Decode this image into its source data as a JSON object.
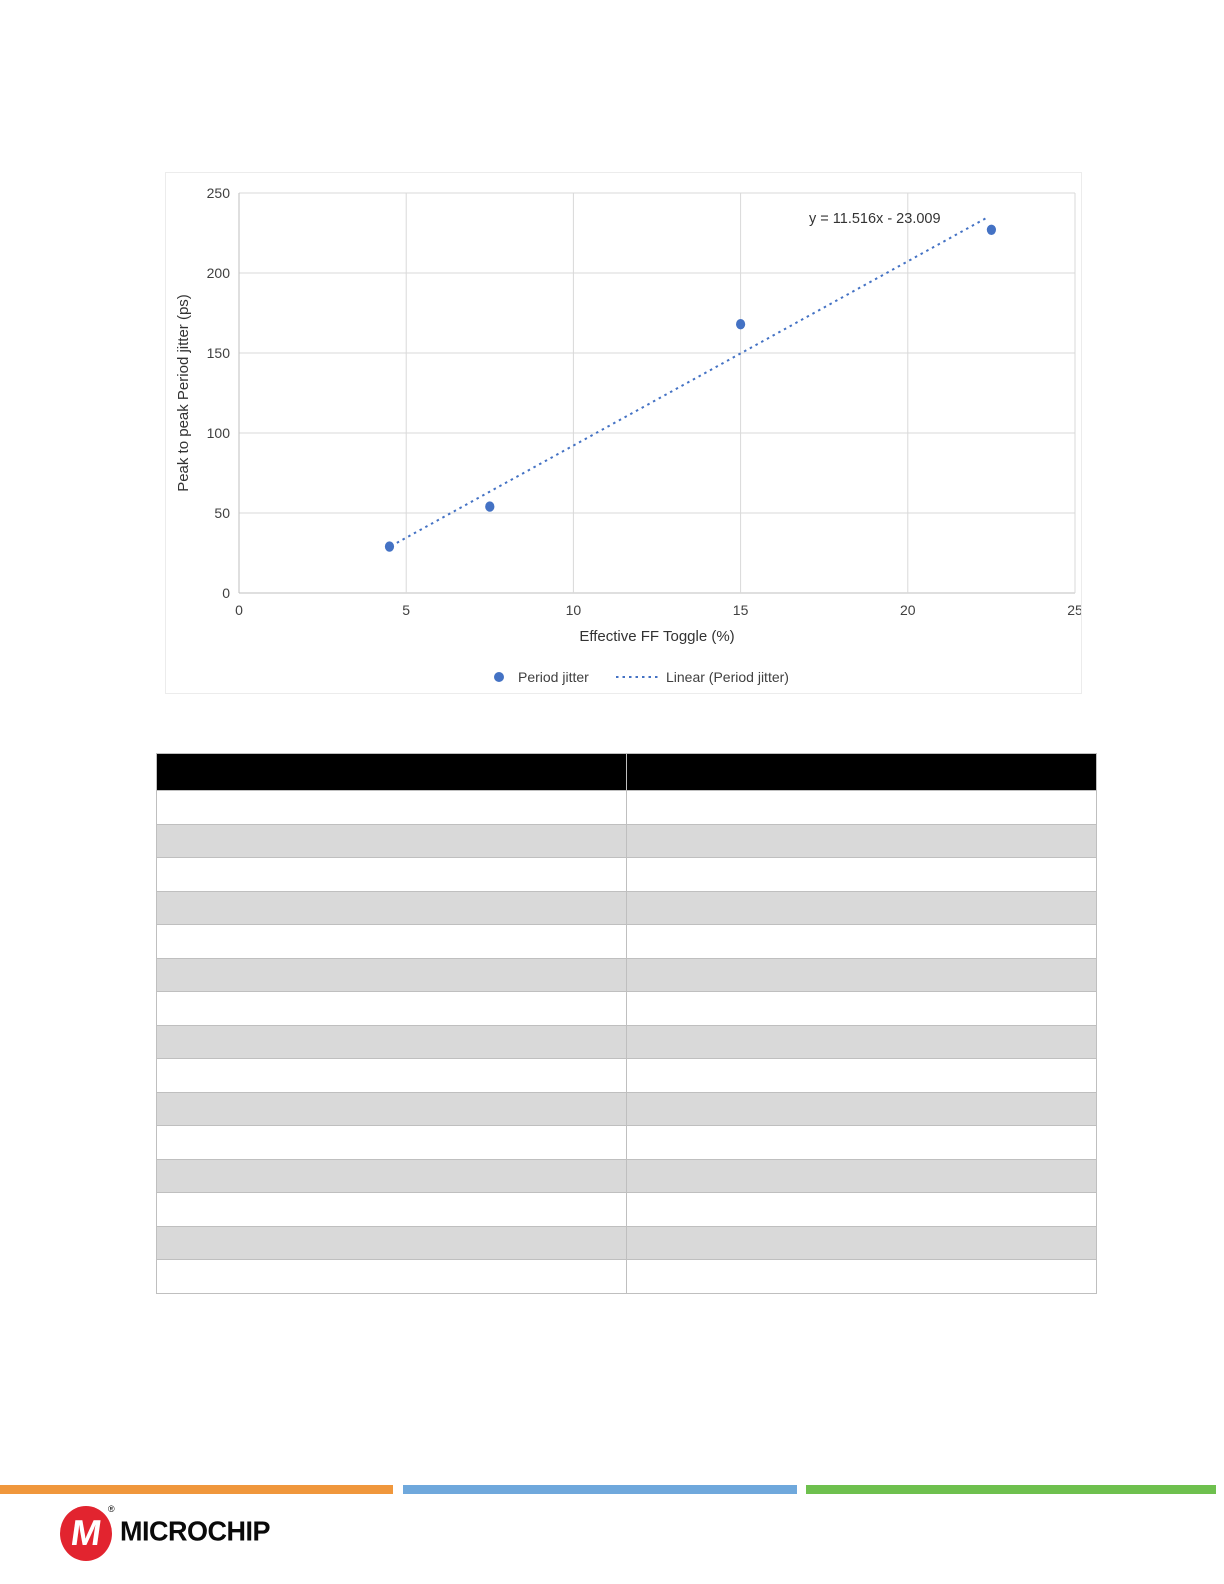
{
  "chart_data": {
    "type": "scatter",
    "title": "",
    "xlabel": "Effective FF Toggle (%)",
    "ylabel": "Peak to peak Period jitter  (ps)",
    "xlim": [
      0,
      25
    ],
    "ylim": [
      0,
      250
    ],
    "xticks": [
      0,
      5,
      10,
      15,
      20,
      25
    ],
    "yticks": [
      0,
      50,
      100,
      150,
      200,
      250
    ],
    "grid": true,
    "legend_position": "bottom",
    "series": [
      {
        "name": "Period jitter",
        "color": "#4472C4",
        "points": [
          [
            4.5,
            29
          ],
          [
            7.5,
            54
          ],
          [
            15,
            168
          ],
          [
            22.5,
            227
          ]
        ]
      }
    ],
    "trendline": {
      "name": "Linear (Period jitter)",
      "equation": "y = 11.516x - 23.009",
      "slope": 11.516,
      "intercept": -23.009,
      "x_start": 4.55,
      "x_end": 22.35,
      "style": "dotted",
      "color": "#4472C4"
    },
    "colors": {
      "gridline": "#d9d9d9",
      "axis": "#bfbfbf",
      "tick_text": "#404040",
      "label_text": "#333333"
    }
  },
  "table": {
    "header": {
      "bg": "#000000",
      "columns": [
        "",
        ""
      ]
    },
    "row_alt_bg": "#d9d9d9",
    "border_color": "#bfbfbf",
    "rows": [
      [
        "",
        ""
      ],
      [
        "",
        ""
      ],
      [
        "",
        ""
      ],
      [
        "",
        ""
      ],
      [
        "",
        ""
      ],
      [
        "",
        ""
      ],
      [
        "",
        ""
      ],
      [
        "",
        ""
      ],
      [
        "",
        ""
      ],
      [
        "",
        ""
      ],
      [
        "",
        ""
      ],
      [
        "",
        ""
      ],
      [
        "",
        ""
      ],
      [
        "",
        ""
      ],
      [
        "",
        ""
      ]
    ]
  },
  "footer": {
    "bars": [
      {
        "name": "orange",
        "color": "#F0973C"
      },
      {
        "name": "blue",
        "color": "#6FA8DC"
      },
      {
        "name": "green",
        "color": "#6EC04E"
      }
    ],
    "logo": {
      "icon_color": "#E2242F",
      "monogram": "M",
      "registered_mark": "®",
      "wordmark": "MICROCHIP"
    }
  }
}
